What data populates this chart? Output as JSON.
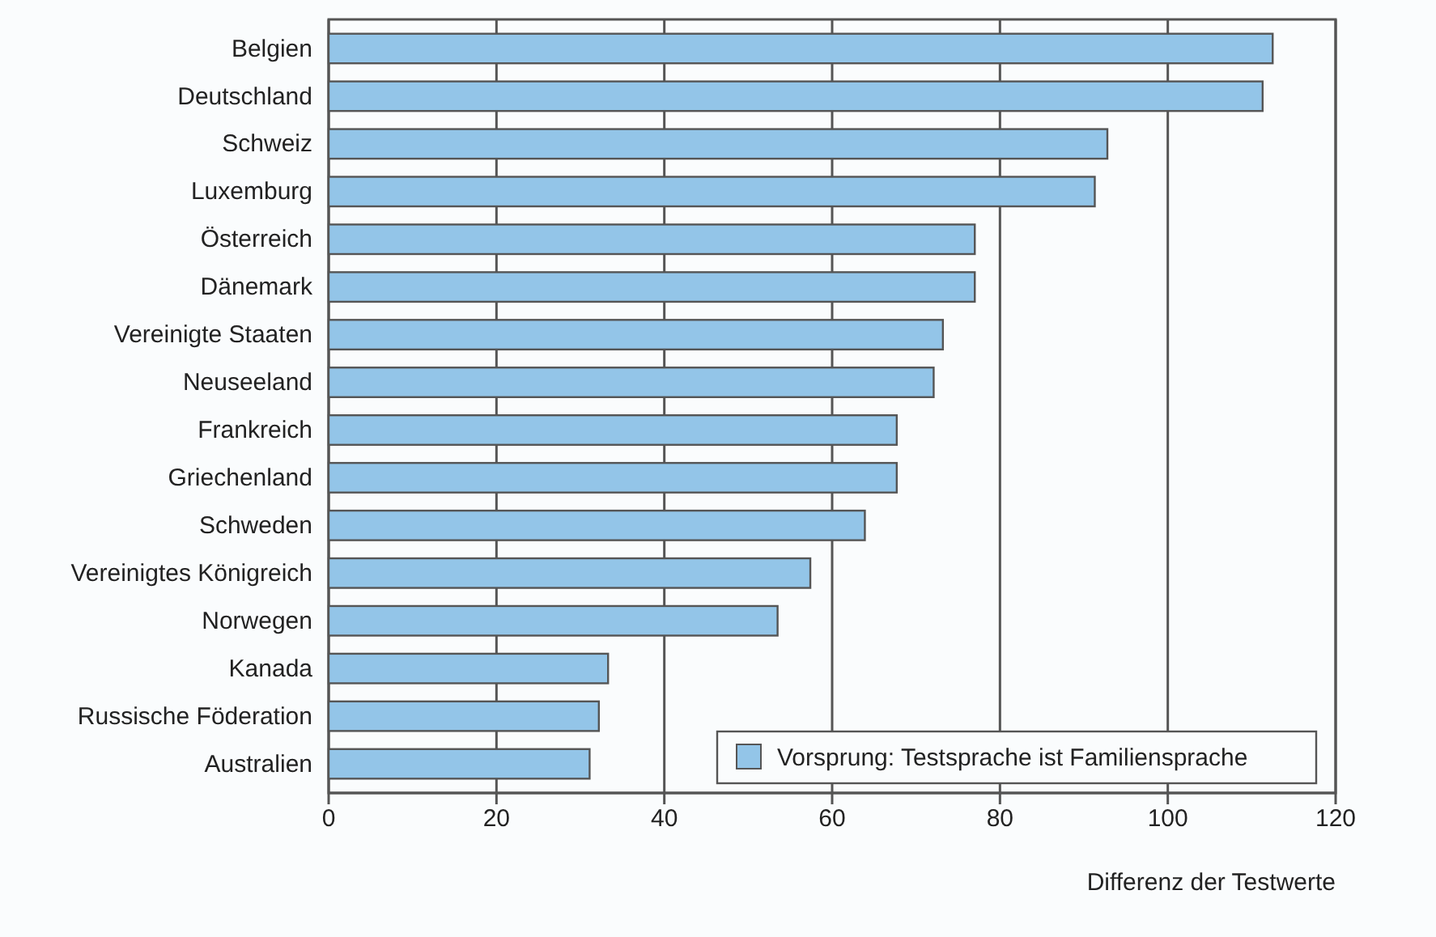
{
  "chart_data": {
    "type": "bar",
    "orientation": "horizontal",
    "xlabel": "Differenz der Testwerte",
    "categories": [
      "Belgien",
      "Deutschland",
      "Schweiz",
      "Luxemburg",
      "Österreich",
      "Dänemark",
      "Vereinigte Staaten",
      "Neuseeland",
      "Frankreich",
      "Griechenland",
      "Schweden",
      "Vereinigtes Königreich",
      "Norwegen",
      "Kanada",
      "Russische Föderation",
      "Australien"
    ],
    "series": [
      {
        "name": "Vorsprung: Testsprache ist Familiensprache",
        "color": "#93c5e8",
        "values": [
          112.5,
          111.3,
          92.8,
          91.3,
          77.0,
          77.0,
          73.2,
          72.1,
          67.7,
          67.7,
          63.9,
          57.4,
          53.5,
          33.3,
          32.2,
          31.1
        ]
      }
    ],
    "xlim": [
      0,
      120
    ],
    "xticks": [
      0,
      20,
      40,
      60,
      80,
      100,
      120
    ],
    "grid": "x",
    "legend": "bottom right"
  }
}
